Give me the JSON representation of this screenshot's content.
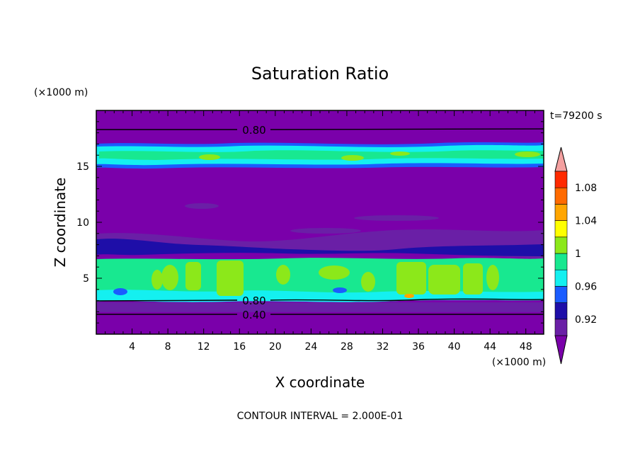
{
  "chart_data": {
    "type": "heatmap",
    "title": "Saturation Ratio",
    "xlabel": "X coordinate",
    "ylabel": "Z coordinate",
    "x_unit": "(×1000 m)",
    "y_unit": "(×1000 m)",
    "time_label": "t=79200 s",
    "footer": "CONTOUR INTERVAL = 2.000E-01",
    "xlim": [
      0,
      50
    ],
    "ylim": [
      0,
      20
    ],
    "x_ticks": [
      "4",
      "8",
      "12",
      "16",
      "20",
      "24",
      "28",
      "32",
      "36",
      "40",
      "44",
      "48"
    ],
    "y_ticks": [
      "5",
      "10",
      "15"
    ],
    "colorbar": {
      "tick_labels": [
        "0.92",
        "0.96",
        "1",
        "1.04",
        "1.08"
      ],
      "bins": [
        {
          "range": [
            null,
            0.9
          ],
          "color": "#7a00aa"
        },
        {
          "range": [
            0.9,
            0.92
          ],
          "color": "#6a1fa6"
        },
        {
          "range": [
            0.92,
            0.94
          ],
          "color": "#1e0ea8"
        },
        {
          "range": [
            0.94,
            0.96
          ],
          "color": "#1a5cff"
        },
        {
          "range": [
            0.96,
            0.98
          ],
          "color": "#14f0f0"
        },
        {
          "range": [
            0.98,
            1.0
          ],
          "color": "#18e890"
        },
        {
          "range": [
            1.0,
            1.02
          ],
          "color": "#8ce81a"
        },
        {
          "range": [
            1.02,
            1.04
          ],
          "color": "#ffff00"
        },
        {
          "range": [
            1.04,
            1.06
          ],
          "color": "#ffa500"
        },
        {
          "range": [
            1.06,
            1.08
          ],
          "color": "#ff6a00"
        },
        {
          "range": [
            1.08,
            1.1
          ],
          "color": "#ff2a00"
        },
        {
          "range": [
            1.1,
            null
          ],
          "color": "#f4a0a0"
        }
      ]
    },
    "contour_lines": [
      {
        "level": "0.80",
        "z": 18.4
      },
      {
        "level": "0.80",
        "z": 3.2
      },
      {
        "level": "0.40",
        "z": 1.9
      }
    ],
    "layers": [
      {
        "z_range": [
          0,
          3.4
        ],
        "value": "<0.90",
        "color": "#7a00aa"
      },
      {
        "z_range": [
          3.4,
          6.8
        ],
        "value": "0.98–1.02",
        "color": "#18e890"
      },
      {
        "z_range": [
          6.8,
          15.2
        ],
        "value": "<0.90",
        "color": "#7a00aa"
      },
      {
        "z_range": [
          15.2,
          17.0
        ],
        "value": "0.94–1.00",
        "color": "#14f0f0"
      },
      {
        "z_range": [
          17.0,
          20
        ],
        "value": "<0.90",
        "color": "#7a00aa"
      }
    ]
  }
}
